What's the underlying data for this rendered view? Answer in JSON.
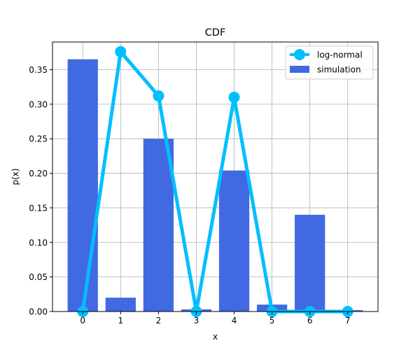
{
  "chart_data": {
    "type": "bar",
    "title": "CDF",
    "xlabel": "x",
    "ylabel": "p(x)",
    "x": [
      0,
      1,
      2,
      3,
      4,
      5,
      6,
      7
    ],
    "xlim": [
      -0.8,
      7.8
    ],
    "ylim": [
      0,
      0.39
    ],
    "x_ticks": [
      "0",
      "1",
      "2",
      "3",
      "4",
      "5",
      "6",
      "7"
    ],
    "y_ticks": [
      "0.00",
      "0.05",
      "0.10",
      "0.15",
      "0.20",
      "0.25",
      "0.30",
      "0.35"
    ],
    "grid": true,
    "legend_position": "top-right",
    "series": [
      {
        "name": "log-normal",
        "kind": "line",
        "marker": "circle",
        "color": "#00bfff",
        "values": [
          0.0,
          0.376,
          0.312,
          0.0,
          0.31,
          0.0,
          0.0,
          0.0
        ]
      },
      {
        "name": "simulation",
        "kind": "bar",
        "color": "#4169e1",
        "values": [
          0.365,
          0.02,
          0.25,
          0.003,
          0.204,
          0.01,
          0.14,
          0.002
        ]
      }
    ]
  }
}
